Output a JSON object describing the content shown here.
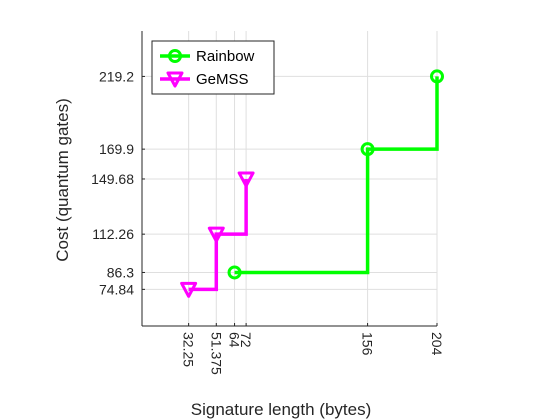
{
  "chart_data": {
    "type": "line",
    "title": "",
    "xlabel": "Signature length (bytes)",
    "ylabel": "Cost (quantum gates)",
    "xlim": [
      0,
      204
    ],
    "ylim": [
      50,
      250
    ],
    "grid": true,
    "legend_position": "top-left",
    "x_ticks": [
      {
        "value": 32.25,
        "label": "32.25"
      },
      {
        "value": 51.375,
        "label": "51.375"
      },
      {
        "value": 64,
        "label": "64"
      },
      {
        "value": 72,
        "label": "72"
      },
      {
        "value": 156,
        "label": "156"
      },
      {
        "value": 204,
        "label": "204"
      }
    ],
    "y_ticks": [
      {
        "value": 74.84,
        "label": "74.84"
      },
      {
        "value": 86.3,
        "label": "86.3"
      },
      {
        "value": 112.26,
        "label": "112.26"
      },
      {
        "value": 149.68,
        "label": "149.68"
      },
      {
        "value": 169.9,
        "label": "169.9"
      },
      {
        "value": 219.2,
        "label": "219.2"
      }
    ],
    "series": [
      {
        "name": "Rainbow",
        "color": "#00ff00",
        "marker": "circle",
        "step": "horizontal-then-vertical",
        "points": [
          {
            "x": 64,
            "y": 86.3
          },
          {
            "x": 156,
            "y": 169.9
          },
          {
            "x": 204,
            "y": 219.2
          }
        ]
      },
      {
        "name": "GeMSS",
        "color": "#ff00ff",
        "marker": "triangle-down",
        "step": "horizontal-then-vertical",
        "points": [
          {
            "x": 32.25,
            "y": 74.84
          },
          {
            "x": 51.375,
            "y": 112.26
          },
          {
            "x": 72,
            "y": 149.68
          }
        ]
      }
    ]
  }
}
